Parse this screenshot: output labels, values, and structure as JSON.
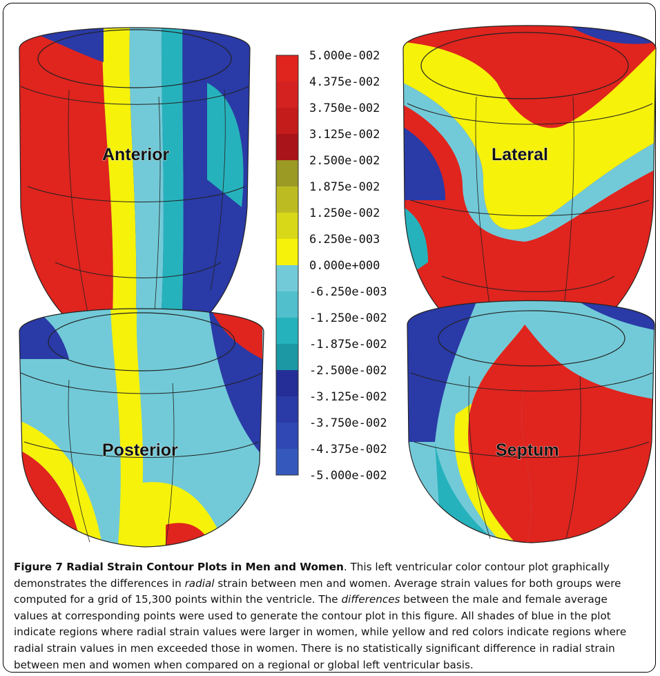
{
  "views": [
    {
      "label": "Anterior"
    },
    {
      "label": "Lateral"
    },
    {
      "label": "Posterior"
    },
    {
      "label": "Septum"
    }
  ],
  "colorbar": {
    "labels": [
      "5.000e-002",
      "4.375e-002",
      "3.750e-002",
      "3.125e-002",
      "2.500e-002",
      "1.875e-002",
      "1.250e-002",
      "6.250e-003",
      "0.000e+000",
      "-6.250e-003",
      "-1.250e-002",
      "-1.875e-002",
      "-2.500e-002",
      "-3.125e-002",
      "-3.750e-002",
      "-4.375e-002",
      "-5.000e-002"
    ],
    "colors": [
      "#e0241e",
      "#d42220",
      "#c41c1a",
      "#a8141a",
      "#9a9a24",
      "#bcbc22",
      "#d8d818",
      "#f6f20a",
      "#72cad8",
      "#52bfcc",
      "#26b2bc",
      "#1c98a4",
      "#242e96",
      "#2a3aa6",
      "#3048b4",
      "#3458bc"
    ]
  },
  "caption": {
    "title": "Figure 7 Radial Strain Contour Plots in Men and Women",
    "p1": ". This left ventricular color contour plot graphically demonstrates the differences in ",
    "e1": "radial",
    "p2": " strain between men and women. Average strain values for both groups were computed for a grid of 15,300 points within the ventricle. The ",
    "e2": "differences",
    "p3": " between the male and female average values at corresponding points were used to generate the contour plot in this figure. All shades of blue in the plot indicate regions where radial strain values were larger in women, while yellow and red colors indicate regions where radial strain values in men exceeded those in women. There is no statistically significant difference in radial strain between men and women when compared on a regional or global left ventricular basis."
  }
}
